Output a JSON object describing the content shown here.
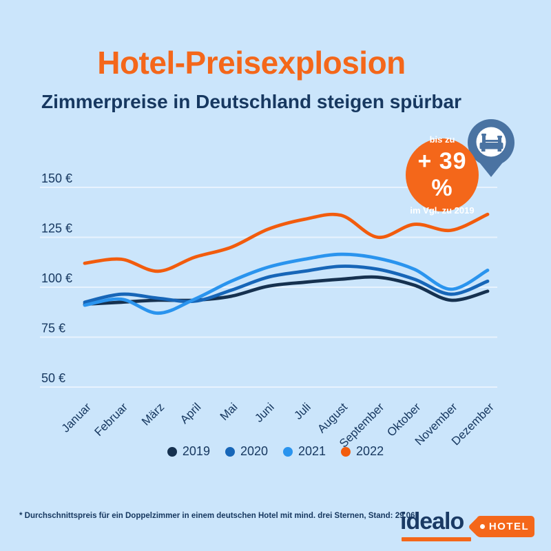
{
  "page": {
    "background_color": "#cbe5fb"
  },
  "header": {
    "title": "Hotel-Preisexplosion",
    "subtitle": "Zimmerpreise in Deutschland steigen spürbar",
    "title_color": "#f4671a",
    "subtitle_color": "#173860"
  },
  "badge": {
    "line1": "bis zu",
    "line2": "+ 39 %",
    "line3": "im Vgl. zu 2019",
    "background_color": "#f4671a",
    "text_color": "#ffffff"
  },
  "pin_icon": {
    "name": "map-pin-bed-icon",
    "pin_color": "#4a73a2",
    "inner_color": "#ffffff"
  },
  "chart_data": {
    "type": "line",
    "title": "",
    "xlabel": "",
    "ylabel": "",
    "unit": "€",
    "categories": [
      "Januar",
      "Februar",
      "März",
      "April",
      "Mai",
      "Juni",
      "Juli",
      "August",
      "September",
      "Oktober",
      "November",
      "Dezember"
    ],
    "series": [
      {
        "name": "2019",
        "color": "#16314f",
        "values": [
          91.5,
          92.5,
          93.5,
          93.5,
          95.5,
          100.5,
          102.5,
          104,
          105,
          101,
          93.5,
          98
        ]
      },
      {
        "name": "2020",
        "color": "#1766b8",
        "values": [
          92.5,
          96.5,
          94.5,
          93,
          98.5,
          105,
          108,
          110.5,
          109,
          104,
          96.5,
          103
        ]
      },
      {
        "name": "2021",
        "color": "#2a94ee",
        "values": [
          91,
          94,
          87,
          94,
          103,
          110,
          114,
          116.5,
          114.5,
          109,
          99,
          108.5
        ]
      },
      {
        "name": "2022",
        "color": "#f25c0d",
        "values": [
          112,
          114,
          108,
          115,
          120,
          129,
          134,
          136,
          125,
          131.5,
          128.5,
          136.5
        ]
      }
    ],
    "y_ticks": [
      "150 €",
      "125 €",
      "100 €",
      "75 €",
      "50 €"
    ],
    "y_tick_values": [
      150,
      125,
      100,
      75,
      50
    ],
    "ylim": [
      50,
      155
    ],
    "grid": true,
    "gridline_color": "#e8f3fe",
    "axis_text_color": "#173860",
    "x_label_rotation": -45,
    "legend_position": "bottom"
  },
  "footnote": {
    "text": "* Durchschnittspreis für ein Doppelzimmer in einem deutschen Hotel mit mind. drei Sternen, Stand: 29.06."
  },
  "logo": {
    "brand": "idealo",
    "tag": "HOTEL",
    "brand_color": "#1a3a64",
    "accent_color": "#f4671a"
  }
}
